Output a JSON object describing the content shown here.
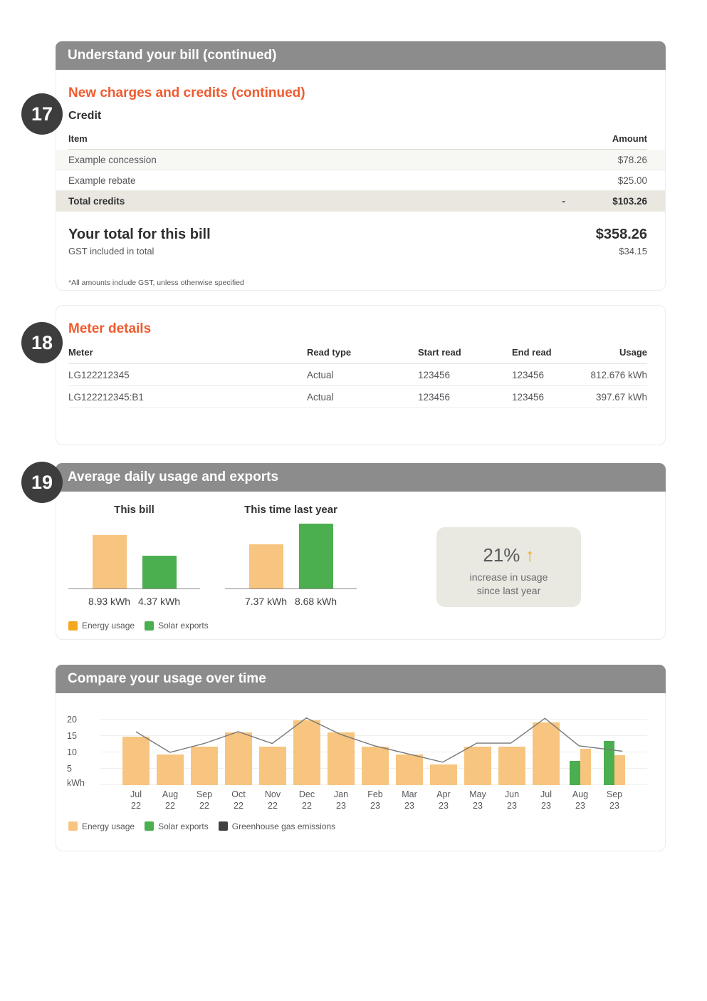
{
  "colors": {
    "header_bar": "#8C8C8C",
    "badge": "#3D3D3D",
    "accent_orange": "#EF5B2F",
    "energy_bar": "#F7C57F",
    "energy_legend_swatch": "#F5A81B",
    "solar_green": "#4BAE4F",
    "emissions_line": "#77787B",
    "emissions_legend_swatch": "#3F4040",
    "stat_box_bg": "#E9E8E1",
    "total_row_bg": "#E9E7E0"
  },
  "badges": {
    "bill": "17",
    "meter": "18",
    "usage": "19"
  },
  "bill_section": {
    "header": "Understand your bill (continued)",
    "subheading": "New charges and credits (continued)",
    "group_label": "Credit",
    "table": {
      "col_item": "Item",
      "col_amount": "Amount",
      "rows": [
        {
          "item": "Example concession",
          "amount": "$78.26"
        },
        {
          "item": "Example rebate",
          "amount": "$25.00"
        }
      ],
      "total_row": {
        "item": "Total credits",
        "sign": "-",
        "amount": "$103.26"
      }
    },
    "total": {
      "label": "Your total for this bill",
      "amount": "$358.26",
      "gst_label": "GST included in total",
      "gst_amount": "$34.15"
    },
    "footnote": "*All amounts include GST, unless otherwise specified"
  },
  "meter_section": {
    "title": "Meter details",
    "col_meter": "Meter",
    "col_read_type": "Read type",
    "col_start_read": "Start read",
    "col_end_read": "End read",
    "col_usage": "Usage",
    "rows": [
      {
        "meter": "LG122212345",
        "read_type": "Actual",
        "start_read": "123456",
        "end_read": "123456",
        "usage": "812.676 kWh"
      },
      {
        "meter": "LG122212345:B1",
        "read_type": "Actual",
        "start_read": "123456",
        "end_read": "123456",
        "usage": "397.67 kWh"
      }
    ]
  },
  "avg_section": {
    "header": "Average daily usage and exports"
  },
  "compare_section": {
    "header": "Compare your usage over time"
  },
  "chart_data": [
    {
      "name": "average-daily-usage-and-exports",
      "type": "bar",
      "charts": [
        {
          "title": "This bill",
          "bars": [
            {
              "series": "Energy usage",
              "value": 8.93,
              "label": "8.93 kWh",
              "color": "#F7C57F"
            },
            {
              "series": "Solar exports",
              "value": 4.37,
              "label": "4.37 kWh",
              "color": "#4BAE4F"
            }
          ]
        },
        {
          "title": "This time last year",
          "bars": [
            {
              "series": "Energy usage",
              "value": 7.37,
              "label": "7.37 kWh",
              "color": "#F7C57F"
            },
            {
              "series": "Solar exports",
              "value": 8.68,
              "label": "8.68 kWh",
              "color": "#4BAE4F"
            }
          ]
        }
      ],
      "legend": [
        {
          "label": "Energy usage",
          "color": "#F5A81B"
        },
        {
          "label": "Solar exports",
          "color": "#4BAE4F"
        }
      ],
      "stat": {
        "value": "21%",
        "arrow": "↑",
        "line1": "increase in usage",
        "line2": "since last year"
      }
    },
    {
      "name": "compare-your-usage-over-time",
      "type": "bar+line",
      "ylabel": "kWh",
      "yticks": [
        20,
        15,
        10,
        5
      ],
      "ylim": [
        0,
        25
      ],
      "grid": true,
      "legend_position": "bottom",
      "categories": [
        "Jul 22",
        "Aug 22",
        "Sep 22",
        "Oct 22",
        "Nov 22",
        "Dec 22",
        "Jan 23",
        "Feb 23",
        "Mar 23",
        "Apr 23",
        "May 23",
        "Jun 23",
        "Jul 23",
        "Aug 23",
        "Sep 23"
      ],
      "series": [
        {
          "name": "Energy usage",
          "type": "bar",
          "color": "#F7C57F",
          "values": [
            14.7,
            9.3,
            11.8,
            16,
            11.8,
            19.8,
            16,
            11.8,
            9.3,
            6.2,
            11.8,
            11.8,
            19.1,
            11.1,
            9.1
          ]
        },
        {
          "name": "Solar exports",
          "type": "bar",
          "color": "#4BAE4F",
          "values": [
            null,
            null,
            null,
            null,
            null,
            null,
            null,
            null,
            null,
            null,
            null,
            null,
            null,
            7.3,
            13.5
          ]
        },
        {
          "name": "Greenhouse gas emissions",
          "type": "line",
          "color": "#77787B",
          "values": [
            16.3,
            10,
            12.7,
            16.3,
            12.7,
            20.5,
            15.5,
            12,
            9.5,
            7,
            12.8,
            12.8,
            20.4,
            12,
            10.7
          ]
        }
      ],
      "legend": [
        {
          "label": "Energy usage",
          "color": "#F7C57F"
        },
        {
          "label": "Solar exports",
          "color": "#4BAE4F"
        },
        {
          "label": "Greenhouse gas emissions",
          "color": "#3F4040"
        }
      ]
    }
  ]
}
